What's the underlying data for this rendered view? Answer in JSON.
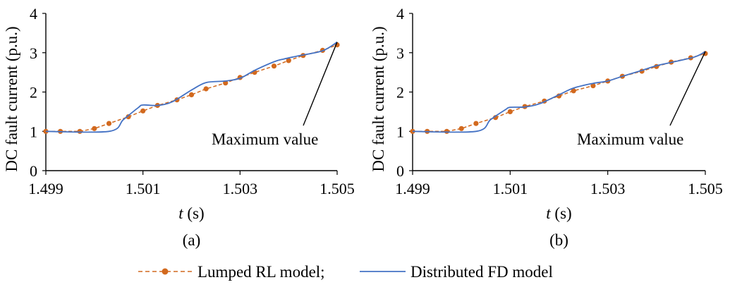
{
  "legend": {
    "lumped_label": "Lumped RL model;",
    "distributed_label": "Distributed FD model"
  },
  "colors": {
    "lumped": "#d2691e",
    "distributed": "#4472c4",
    "axis": "#000000"
  },
  "chart_data": [
    {
      "type": "line",
      "panel_label": "(a)",
      "xlabel_italic": "t",
      "xlabel_unit": " (s)",
      "ylabel": "DC fault current (p.u.)",
      "xlim": [
        1.499,
        1.505
      ],
      "ylim": [
        0,
        4
      ],
      "xticks": [
        1.499,
        1.501,
        1.503,
        1.505
      ],
      "xtick_labels": [
        "1.499",
        "1.501",
        "1.503",
        "1.505"
      ],
      "yticks": [
        0,
        1,
        2,
        3,
        4
      ],
      "ytick_labels": [
        "0",
        "1",
        "2",
        "3",
        "4"
      ],
      "annotation": {
        "text": "Maximum value",
        "target": [
          1.505,
          3.27
        ]
      },
      "series": [
        {
          "name": "Lumped RL model",
          "style": "dashed-dots",
          "x": [
            1.499,
            1.4993,
            1.4997,
            1.5,
            1.5003,
            1.5007,
            1.501,
            1.5013,
            1.5017,
            1.502,
            1.5023,
            1.5027,
            1.503,
            1.5033,
            1.5037,
            1.504,
            1.5043,
            1.5047,
            1.505
          ],
          "y": [
            1.0,
            1.0,
            1.0,
            1.07,
            1.2,
            1.37,
            1.52,
            1.66,
            1.8,
            1.93,
            2.08,
            2.23,
            2.37,
            2.5,
            2.66,
            2.8,
            2.93,
            3.06,
            3.2
          ]
        },
        {
          "name": "Distributed FD model",
          "style": "solid",
          "x": [
            1.499,
            1.5003,
            1.5006,
            1.5009,
            1.501,
            1.5013,
            1.5016,
            1.502,
            1.5023,
            1.5027,
            1.503,
            1.5033,
            1.5037,
            1.5039,
            1.5042,
            1.5047,
            1.505
          ],
          "y": [
            1.0,
            1.0,
            1.3,
            1.6,
            1.67,
            1.66,
            1.75,
            2.05,
            2.24,
            2.28,
            2.35,
            2.55,
            2.77,
            2.84,
            2.92,
            3.05,
            3.27
          ]
        }
      ]
    },
    {
      "type": "line",
      "panel_label": "(b)",
      "xlabel_italic": "t",
      "xlabel_unit": " (s)",
      "ylabel": "DC fault current (p.u.)",
      "xlim": [
        1.499,
        1.505
      ],
      "ylim": [
        0,
        4
      ],
      "xticks": [
        1.499,
        1.501,
        1.503,
        1.505
      ],
      "xtick_labels": [
        "1.499",
        "1.501",
        "1.503",
        "1.505"
      ],
      "yticks": [
        0,
        1,
        2,
        3,
        4
      ],
      "ytick_labels": [
        "0",
        "1",
        "2",
        "3",
        "4"
      ],
      "annotation": {
        "text": "Maximum value",
        "target": [
          1.505,
          3.03
        ]
      },
      "series": [
        {
          "name": "Lumped RL model",
          "style": "dashed-dots",
          "x": [
            1.499,
            1.4993,
            1.4997,
            1.5,
            1.5003,
            1.5007,
            1.501,
            1.5013,
            1.5017,
            1.502,
            1.5023,
            1.5027,
            1.503,
            1.5033,
            1.5037,
            1.504,
            1.5043,
            1.5047,
            1.505
          ],
          "y": [
            1.0,
            1.0,
            1.0,
            1.07,
            1.2,
            1.35,
            1.5,
            1.63,
            1.77,
            1.9,
            2.03,
            2.16,
            2.28,
            2.4,
            2.53,
            2.65,
            2.76,
            2.87,
            2.98
          ]
        },
        {
          "name": "Distributed FD model",
          "style": "solid",
          "x": [
            1.499,
            1.5003,
            1.5006,
            1.5009,
            1.501,
            1.5013,
            1.5016,
            1.502,
            1.5023,
            1.5027,
            1.503,
            1.5033,
            1.5037,
            1.504,
            1.5044,
            1.5048,
            1.505
          ],
          "y": [
            1.0,
            1.0,
            1.3,
            1.55,
            1.61,
            1.62,
            1.7,
            1.93,
            2.1,
            2.22,
            2.28,
            2.4,
            2.55,
            2.67,
            2.78,
            2.9,
            3.03
          ]
        }
      ]
    }
  ]
}
